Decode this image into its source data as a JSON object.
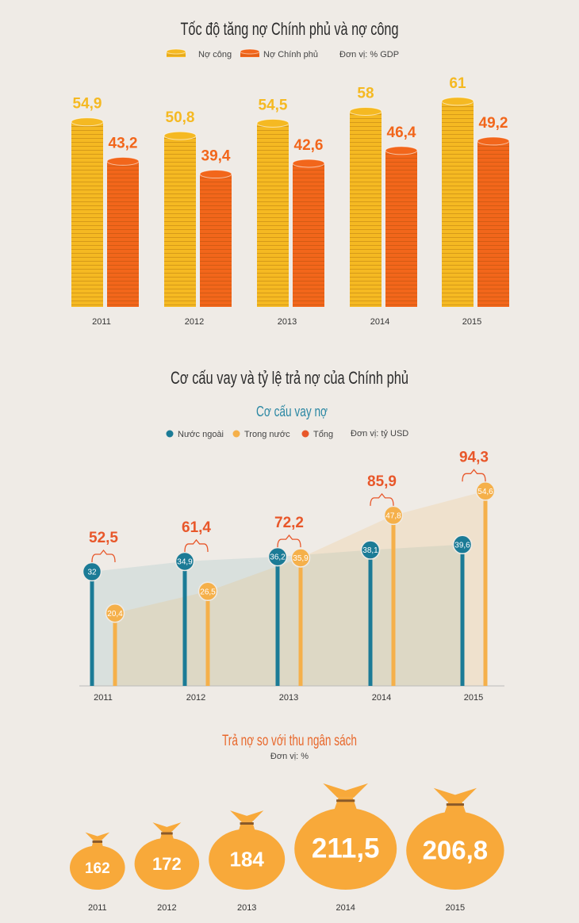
{
  "chart_data": [
    {
      "type": "bar",
      "title": "Tốc độ tăng nợ Chính phủ và nợ công",
      "unit": "Đơn vị: % GDP",
      "categories": [
        "2011",
        "2012",
        "2013",
        "2014",
        "2015"
      ],
      "series": [
        {
          "name": "Nợ công",
          "color": "#f5b922",
          "values": [
            54.9,
            50.8,
            54.5,
            58,
            61
          ],
          "value_labels": [
            "54,9",
            "50,8",
            "54,5",
            "58",
            "61"
          ]
        },
        {
          "name": "Nợ Chính phủ",
          "color": "#f2661b",
          "values": [
            43.2,
            39.4,
            42.6,
            46.4,
            49.2
          ],
          "value_labels": [
            "43,2",
            "39,4",
            "42,6",
            "46,4",
            "49,2"
          ]
        }
      ]
    },
    {
      "type": "lollipop",
      "title": "Cơ cấu vay và tỷ lệ trả nợ của Chính phủ",
      "subtitle": "Cơ cấu vay nợ",
      "unit": "Đơn vị: tỷ USD",
      "categories": [
        "2011",
        "2012",
        "2013",
        "2014",
        "2015"
      ],
      "series": [
        {
          "name": "Nước ngoài",
          "color": "#1b7b96",
          "values": [
            32,
            34.9,
            36.2,
            38.1,
            39.6
          ],
          "value_labels": [
            "32",
            "34,9",
            "36,2",
            "38,1",
            "39,6"
          ]
        },
        {
          "name": "Trong nước",
          "color": "#f5b04a",
          "values": [
            20.4,
            26.5,
            35.9,
            47.8,
            54.6
          ],
          "value_labels": [
            "20,4",
            "26,5",
            "35,9",
            "47,8",
            "54,6"
          ]
        },
        {
          "name": "Tổng",
          "color": "#e8572a",
          "values": [
            52.5,
            61.4,
            72.2,
            85.9,
            94.3
          ],
          "value_labels": [
            "52,5",
            "61,4",
            "72,2",
            "85,9",
            "94,3"
          ]
        }
      ]
    },
    {
      "type": "bubble",
      "title": "Trả nợ so với thu ngân sách",
      "subtitle": "Đơn vị: %",
      "categories": [
        "2011",
        "2012",
        "2013",
        "2014",
        "2015"
      ],
      "values": [
        162,
        172,
        184,
        211.5,
        206.8
      ],
      "value_labels": [
        "162",
        "172",
        "184",
        "211,5",
        "206,8"
      ],
      "color": "#f8a93a"
    }
  ]
}
